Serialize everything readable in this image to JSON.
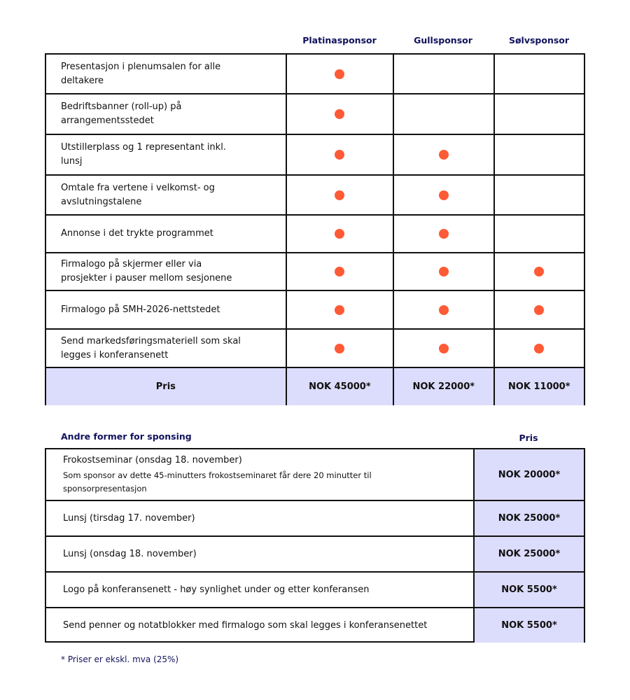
{
  "tiers": [
    "Platinasponsor",
    "Gullsponsor",
    "Sølvsponsor"
  ],
  "colors": {
    "accent_dot": "#ff5a36",
    "heading": "#12125e",
    "price_bg": "#dcdcfc"
  },
  "benefits": [
    {
      "label": "Presentasjon i plenumsalen for alle deltakere",
      "included": [
        true,
        false,
        false
      ]
    },
    {
      "label": "Bedriftsbanner (roll-up) på arrangementsstedet",
      "included": [
        true,
        false,
        false
      ]
    },
    {
      "label": "Utstillerplass og 1 representant inkl. lunsj",
      "included": [
        true,
        true,
        false
      ]
    },
    {
      "label": "Omtale fra vertene i velkomst- og avslutningstalene",
      "included": [
        true,
        true,
        false
      ]
    },
    {
      "label": "Annonse i det trykte programmet",
      "included": [
        true,
        true,
        false
      ]
    },
    {
      "label": "Firmalogo på skjermer eller via prosjekter i pauser mellom sesjonene",
      "included": [
        true,
        true,
        true
      ]
    },
    {
      "label": "Firmalogo på SMH-2026-nettstedet",
      "included": [
        true,
        true,
        true
      ]
    },
    {
      "label": "Send markedsføringsmateriell som skal legges i konferansenett",
      "included": [
        true,
        true,
        true
      ]
    }
  ],
  "price_row": {
    "label": "Pris",
    "prices": [
      "NOK 45000*",
      "NOK 22000*",
      "NOK 11000*"
    ]
  },
  "other": {
    "title": "Andre former for sponsing",
    "price_header": "Pris",
    "items": [
      {
        "label": "Frokostseminar (onsdag 18. november)",
        "detail": "Som sponsor av dette 45-minutters frokostseminaret får dere 20 minutter til sponsorpresentasjon",
        "price": "NOK 20000*"
      },
      {
        "label": "Lunsj (tirsdag 17. november)",
        "price": "NOK 25000*"
      },
      {
        "label": "Lunsj (onsdag 18. november)",
        "price": "NOK 25000*"
      },
      {
        "label": "Logo på konferansenett - høy synlighet under og etter konferansen",
        "price": "NOK 5500*"
      },
      {
        "label": "Send penner og notatblokker med firmalogo som skal legges i konferansenettet",
        "price": "NOK 5500*"
      }
    ]
  },
  "footnote": "* Priser er ekskl. mva (25%)"
}
